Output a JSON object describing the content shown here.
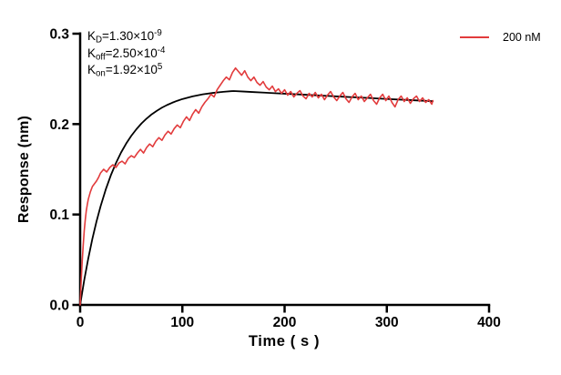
{
  "figure": {
    "background": "#ffffff",
    "axis_color": "#000000"
  },
  "chart_data": {
    "type": "line",
    "title": "",
    "xlabel": "Time ( s )",
    "ylabel": "Response (nm)",
    "xlim": [
      0,
      400
    ],
    "ylim": [
      0,
      0.3
    ],
    "grid": false,
    "legend_position": "top-right",
    "xticks": {
      "values": [
        0,
        100,
        200,
        300,
        400
      ],
      "labels": [
        "0",
        "100",
        "200",
        "300",
        "400"
      ]
    },
    "yticks": {
      "values": [
        0,
        0.1,
        0.2,
        0.3
      ],
      "labels": [
        "0.0",
        "0.1",
        "0.2",
        "0.3"
      ]
    },
    "annotations": [
      {
        "pre": "K",
        "sub": "D",
        "mid": "=1.30×10",
        "sup": "-9"
      },
      {
        "pre": "K",
        "sub": "off",
        "mid": "=2.50×10",
        "sup": "-4"
      },
      {
        "pre": "K",
        "sub": "on",
        "mid": "=1.92×10",
        "sup": "5"
      }
    ],
    "legend": [
      {
        "label": "200 nM",
        "color": "#E23B3C"
      }
    ],
    "series": [
      {
        "name": "Fit",
        "color": "#000000",
        "width": 1.8,
        "points": [
          [
            0,
            0
          ],
          [
            4,
            0.0274
          ],
          [
            8,
            0.0517
          ],
          [
            12,
            0.0733
          ],
          [
            16,
            0.0923
          ],
          [
            20,
            0.1091
          ],
          [
            25,
            0.1275
          ],
          [
            30,
            0.1433
          ],
          [
            35,
            0.1568
          ],
          [
            40,
            0.1685
          ],
          [
            45,
            0.1784
          ],
          [
            50,
            0.187
          ],
          [
            55,
            0.1943
          ],
          [
            60,
            0.2007
          ],
          [
            65,
            0.2061
          ],
          [
            70,
            0.2108
          ],
          [
            75,
            0.2147
          ],
          [
            80,
            0.2182
          ],
          [
            85,
            0.2211
          ],
          [
            90,
            0.2236
          ],
          [
            95,
            0.2258
          ],
          [
            100,
            0.2277
          ],
          [
            110,
            0.2307
          ],
          [
            120,
            0.2329
          ],
          [
            130,
            0.2345
          ],
          [
            140,
            0.2357
          ],
          [
            150,
            0.2366
          ],
          [
            160,
            0.236
          ],
          [
            170,
            0.2354
          ],
          [
            180,
            0.2348
          ],
          [
            190,
            0.2342
          ],
          [
            200,
            0.2336
          ],
          [
            220,
            0.2325
          ],
          [
            240,
            0.2313
          ],
          [
            260,
            0.2301
          ],
          [
            280,
            0.229
          ],
          [
            300,
            0.2278
          ],
          [
            320,
            0.2267
          ],
          [
            345,
            0.2253
          ]
        ]
      },
      {
        "name": "200 nM",
        "color": "#E23B3C",
        "width": 1.6,
        "points": [
          [
            0,
            0.0
          ],
          [
            1,
            0.026
          ],
          [
            2,
            0.048
          ],
          [
            3,
            0.066
          ],
          [
            4,
            0.082
          ],
          [
            5,
            0.094
          ],
          [
            6,
            0.104
          ],
          [
            7,
            0.111
          ],
          [
            8,
            0.117
          ],
          [
            9,
            0.121
          ],
          [
            10,
            0.125
          ],
          [
            12,
            0.131
          ],
          [
            14,
            0.134
          ],
          [
            16,
            0.137
          ],
          [
            18,
            0.141
          ],
          [
            20,
            0.146
          ],
          [
            23,
            0.15
          ],
          [
            26,
            0.147
          ],
          [
            29,
            0.152
          ],
          [
            32,
            0.155
          ],
          [
            35,
            0.152
          ],
          [
            38,
            0.157
          ],
          [
            41,
            0.159
          ],
          [
            44,
            0.156
          ],
          [
            47,
            0.162
          ],
          [
            50,
            0.165
          ],
          [
            53,
            0.163
          ],
          [
            56,
            0.168
          ],
          [
            59,
            0.172
          ],
          [
            62,
            0.168
          ],
          [
            65,
            0.174
          ],
          [
            68,
            0.178
          ],
          [
            71,
            0.175
          ],
          [
            74,
            0.181
          ],
          [
            77,
            0.185
          ],
          [
            80,
            0.182
          ],
          [
            83,
            0.188
          ],
          [
            86,
            0.192
          ],
          [
            89,
            0.189
          ],
          [
            92,
            0.195
          ],
          [
            95,
            0.199
          ],
          [
            98,
            0.196
          ],
          [
            101,
            0.203
          ],
          [
            104,
            0.208
          ],
          [
            107,
            0.204
          ],
          [
            110,
            0.211
          ],
          [
            113,
            0.216
          ],
          [
            116,
            0.212
          ],
          [
            119,
            0.219
          ],
          [
            122,
            0.224
          ],
          [
            125,
            0.228
          ],
          [
            128,
            0.233
          ],
          [
            131,
            0.23
          ],
          [
            134,
            0.238
          ],
          [
            137,
            0.243
          ],
          [
            140,
            0.248
          ],
          [
            143,
            0.252
          ],
          [
            146,
            0.249
          ],
          [
            149,
            0.257
          ],
          [
            152,
            0.262
          ],
          [
            155,
            0.258
          ],
          [
            158,
            0.254
          ],
          [
            161,
            0.259
          ],
          [
            164,
            0.252
          ],
          [
            167,
            0.248
          ],
          [
            170,
            0.252
          ],
          [
            173,
            0.246
          ],
          [
            176,
            0.243
          ],
          [
            179,
            0.247
          ],
          [
            182,
            0.241
          ],
          [
            185,
            0.238
          ],
          [
            188,
            0.242
          ],
          [
            191,
            0.236
          ],
          [
            194,
            0.239
          ],
          [
            197,
            0.234
          ],
          [
            200,
            0.238
          ],
          [
            203,
            0.232
          ],
          [
            206,
            0.236
          ],
          [
            209,
            0.23
          ],
          [
            212,
            0.234
          ],
          [
            215,
            0.237
          ],
          [
            218,
            0.231
          ],
          [
            221,
            0.228
          ],
          [
            224,
            0.234
          ],
          [
            227,
            0.23
          ],
          [
            230,
            0.235
          ],
          [
            233,
            0.229
          ],
          [
            236,
            0.233
          ],
          [
            239,
            0.227
          ],
          [
            242,
            0.232
          ],
          [
            245,
            0.236
          ],
          [
            248,
            0.23
          ],
          [
            251,
            0.226
          ],
          [
            254,
            0.231
          ],
          [
            257,
            0.235
          ],
          [
            260,
            0.228
          ],
          [
            263,
            0.224
          ],
          [
            266,
            0.23
          ],
          [
            269,
            0.234
          ],
          [
            272,
            0.227
          ],
          [
            275,
            0.231
          ],
          [
            278,
            0.225
          ],
          [
            281,
            0.229
          ],
          [
            284,
            0.233
          ],
          [
            287,
            0.226
          ],
          [
            290,
            0.222
          ],
          [
            293,
            0.229
          ],
          [
            296,
            0.233
          ],
          [
            299,
            0.226
          ],
          [
            302,
            0.231
          ],
          [
            305,
            0.224
          ],
          [
            308,
            0.219
          ],
          [
            311,
            0.227
          ],
          [
            314,
            0.231
          ],
          [
            317,
            0.225
          ],
          [
            320,
            0.229
          ],
          [
            323,
            0.223
          ],
          [
            326,
            0.228
          ],
          [
            329,
            0.231
          ],
          [
            332,
            0.225
          ],
          [
            335,
            0.229
          ],
          [
            338,
            0.224
          ],
          [
            341,
            0.227
          ],
          [
            344,
            0.222
          ],
          [
            345,
            0.226
          ]
        ]
      }
    ]
  }
}
